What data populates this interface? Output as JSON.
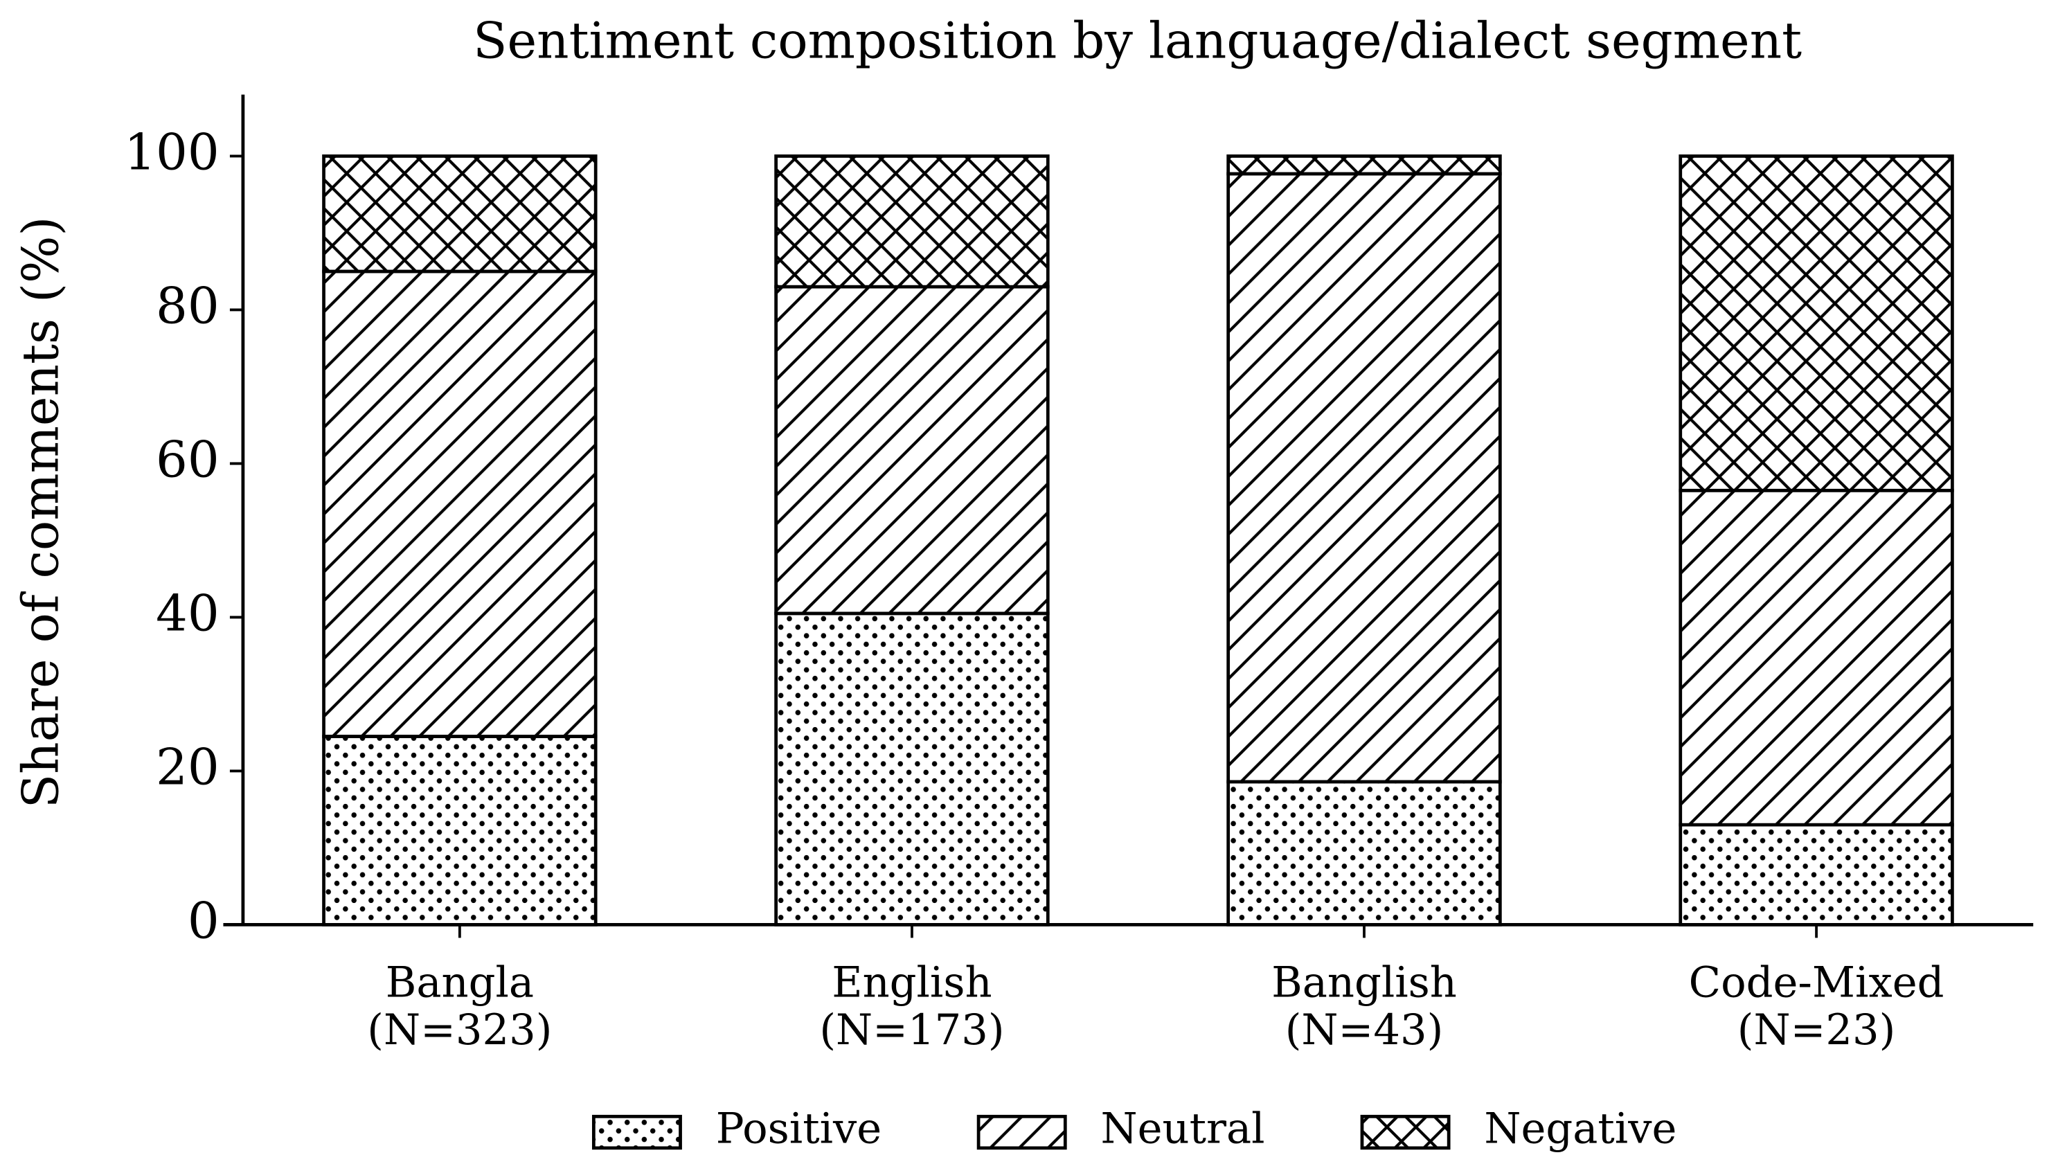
{
  "chart_data": {
    "type": "stacked_bar",
    "title": "Sentiment composition by language/dialect segment",
    "y_label": "Share of comments (%)",
    "categories": [
      "Bangla\n(N=323)",
      "English\n(N=173)",
      "Banglish\n(N=43)",
      "Code-Mixed\n(N=23)"
    ],
    "series": [
      {
        "name": "Positive",
        "color": "#ffffff",
        "hatch": "..",
        "values": [
          24.5,
          40.5,
          18.6,
          13.0
        ]
      },
      {
        "name": "Neutral",
        "color": "#ffffff",
        "hatch": "//",
        "values": [
          60.5,
          42.5,
          79.1,
          43.5
        ]
      },
      {
        "name": "Negative",
        "color": "#ffffff",
        "hatch": "xx",
        "values": [
          15.0,
          17.0,
          2.3,
          43.5
        ]
      }
    ],
    "ylim": [
      0,
      108
    ],
    "yticks": [
      0,
      20,
      40,
      60,
      80,
      100
    ],
    "grid": false,
    "legend": "bottom"
  }
}
